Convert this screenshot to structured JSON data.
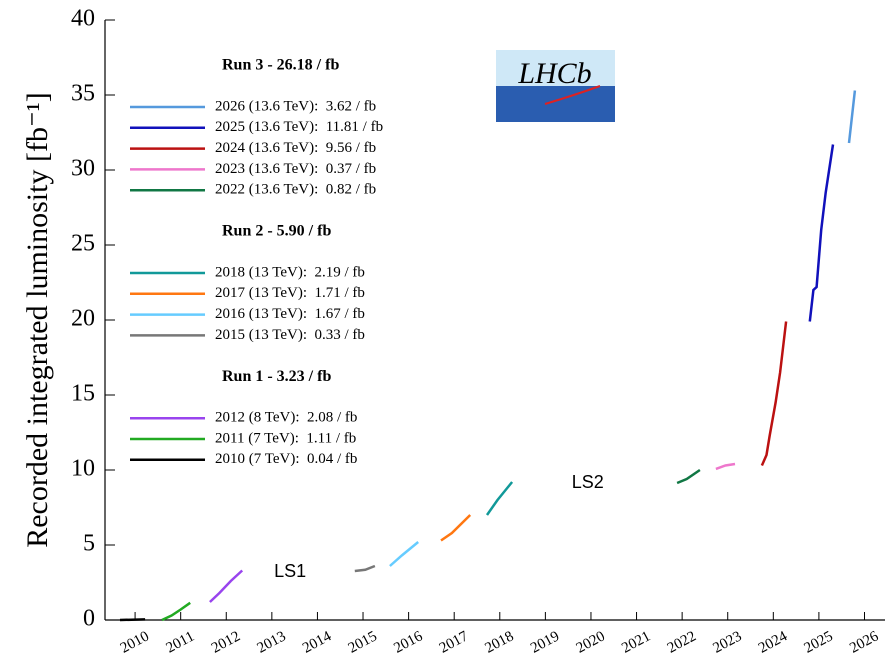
{
  "chart_data": {
    "type": "line",
    "y_label": "Recorded integrated luminosity [fb⁻¹]",
    "logo_text": "LHCb",
    "xlim": [
      2009.84,
      2026.95
    ],
    "xticks": [
      {
        "value": 2010.5,
        "label": "2010"
      },
      {
        "value": 2011.5,
        "label": "2011"
      },
      {
        "value": 2012.5,
        "label": "2012"
      },
      {
        "value": 2013.5,
        "label": "2013"
      },
      {
        "value": 2014.5,
        "label": "2014"
      },
      {
        "value": 2015.5,
        "label": "2015"
      },
      {
        "value": 2016.5,
        "label": "2016"
      },
      {
        "value": 2017.5,
        "label": "2017"
      },
      {
        "value": 2018.5,
        "label": "2018"
      },
      {
        "value": 2019.5,
        "label": "2019"
      },
      {
        "value": 2020.5,
        "label": "2020"
      },
      {
        "value": 2021.5,
        "label": "2021"
      },
      {
        "value": 2022.5,
        "label": "2022"
      },
      {
        "value": 2023.5,
        "label": "2023"
      },
      {
        "value": 2024.5,
        "label": "2024"
      },
      {
        "value": 2025.5,
        "label": "2025"
      },
      {
        "value": 2026.5,
        "label": "2026"
      }
    ],
    "ylim": [
      0,
      40
    ],
    "yticks": [
      0,
      5,
      10,
      15,
      20,
      25,
      30,
      35,
      40
    ],
    "annotations": [
      {
        "text": "LS1",
        "x": 2013.9,
        "y": 3.2
      },
      {
        "text": "LS2",
        "x": 2020.43,
        "y": 9.13
      }
    ],
    "legend_groups": [
      {
        "title": "Run 3 - 26.18 / fb",
        "series": [
          {
            "name": "2026 (13.6 TeV):  3.62 / fb",
            "color": "#5599dd",
            "x": [
              2026.16,
              2026.22,
              2026.29
            ],
            "values": [
              31.8,
              33.4,
              35.3
            ]
          },
          {
            "name": "2025 (13.6 TeV):  11.81 / fb",
            "color": "#1111bb",
            "x": [
              2025.3,
              2025.38,
              2025.45,
              2025.55,
              2025.65,
              2025.81
            ],
            "values": [
              19.9,
              22,
              22.2,
              26,
              28.5,
              31.7
            ]
          },
          {
            "name": "2024 (13.6 TeV):  9.56 / fb",
            "color": "#bb1111",
            "x": [
              2024.25,
              2024.35,
              2024.42,
              2024.55,
              2024.65,
              2024.78
            ],
            "values": [
              10.3,
              11,
              12.3,
              14.5,
              16.5,
              19.9
            ]
          },
          {
            "name": "2023 (13.6 TeV):  0.37 / fb",
            "color": "#ee77cc",
            "x": [
              2023.24,
              2023.45,
              2023.66
            ],
            "values": [
              10.07,
              10.3,
              10.4
            ]
          },
          {
            "name": "2022 (13.6 TeV):  0.82 / fb",
            "color": "#117744",
            "x": [
              2022.39,
              2022.6,
              2022.89
            ],
            "values": [
              9.13,
              9.4,
              10.0
            ]
          }
        ]
      },
      {
        "title": "Run 2 - 5.90 / fb",
        "series": [
          {
            "name": "2018 (13 TeV):  2.19 / fb",
            "color": "#119999",
            "x": [
              2018.22,
              2018.45,
              2018.77
            ],
            "values": [
              7.0,
              8.0,
              9.2
            ]
          },
          {
            "name": "2017 (13 TeV):  1.71 / fb",
            "color": "#ff7711",
            "x": [
              2017.21,
              2017.45,
              2017.85
            ],
            "values": [
              5.3,
              5.8,
              7.0
            ]
          },
          {
            "name": "2016 (13 TeV):  1.67 / fb",
            "color": "#66ccff",
            "x": [
              2016.09,
              2016.35,
              2016.71
            ],
            "values": [
              3.6,
              4.3,
              5.2
            ]
          },
          {
            "name": "2015 (13 TeV):  0.33 / fb",
            "color": "#777777",
            "x": [
              2015.32,
              2015.55,
              2015.76
            ],
            "values": [
              3.27,
              3.35,
              3.6
            ]
          }
        ]
      },
      {
        "title": "Run 1 - 3.23 / fb",
        "series": [
          {
            "name": "2012 (8 TeV):  2.08 / fb",
            "color": "#9944ee",
            "x": [
              2012.14,
              2012.35,
              2012.6,
              2012.85
            ],
            "values": [
              1.2,
              1.8,
              2.6,
              3.3
            ]
          },
          {
            "name": "2011 (7 TeV):  1.11 / fb",
            "color": "#22aa22",
            "x": [
              2011.09,
              2011.3,
              2011.5,
              2011.71
            ],
            "values": [
              0,
              0.3,
              0.7,
              1.15
            ]
          },
          {
            "name": "2010 (7 TeV):  0.04 / fb",
            "color": "#000000",
            "x": [
              2010.17,
              2010.72
            ],
            "values": [
              0,
              0.04
            ]
          }
        ]
      }
    ]
  }
}
